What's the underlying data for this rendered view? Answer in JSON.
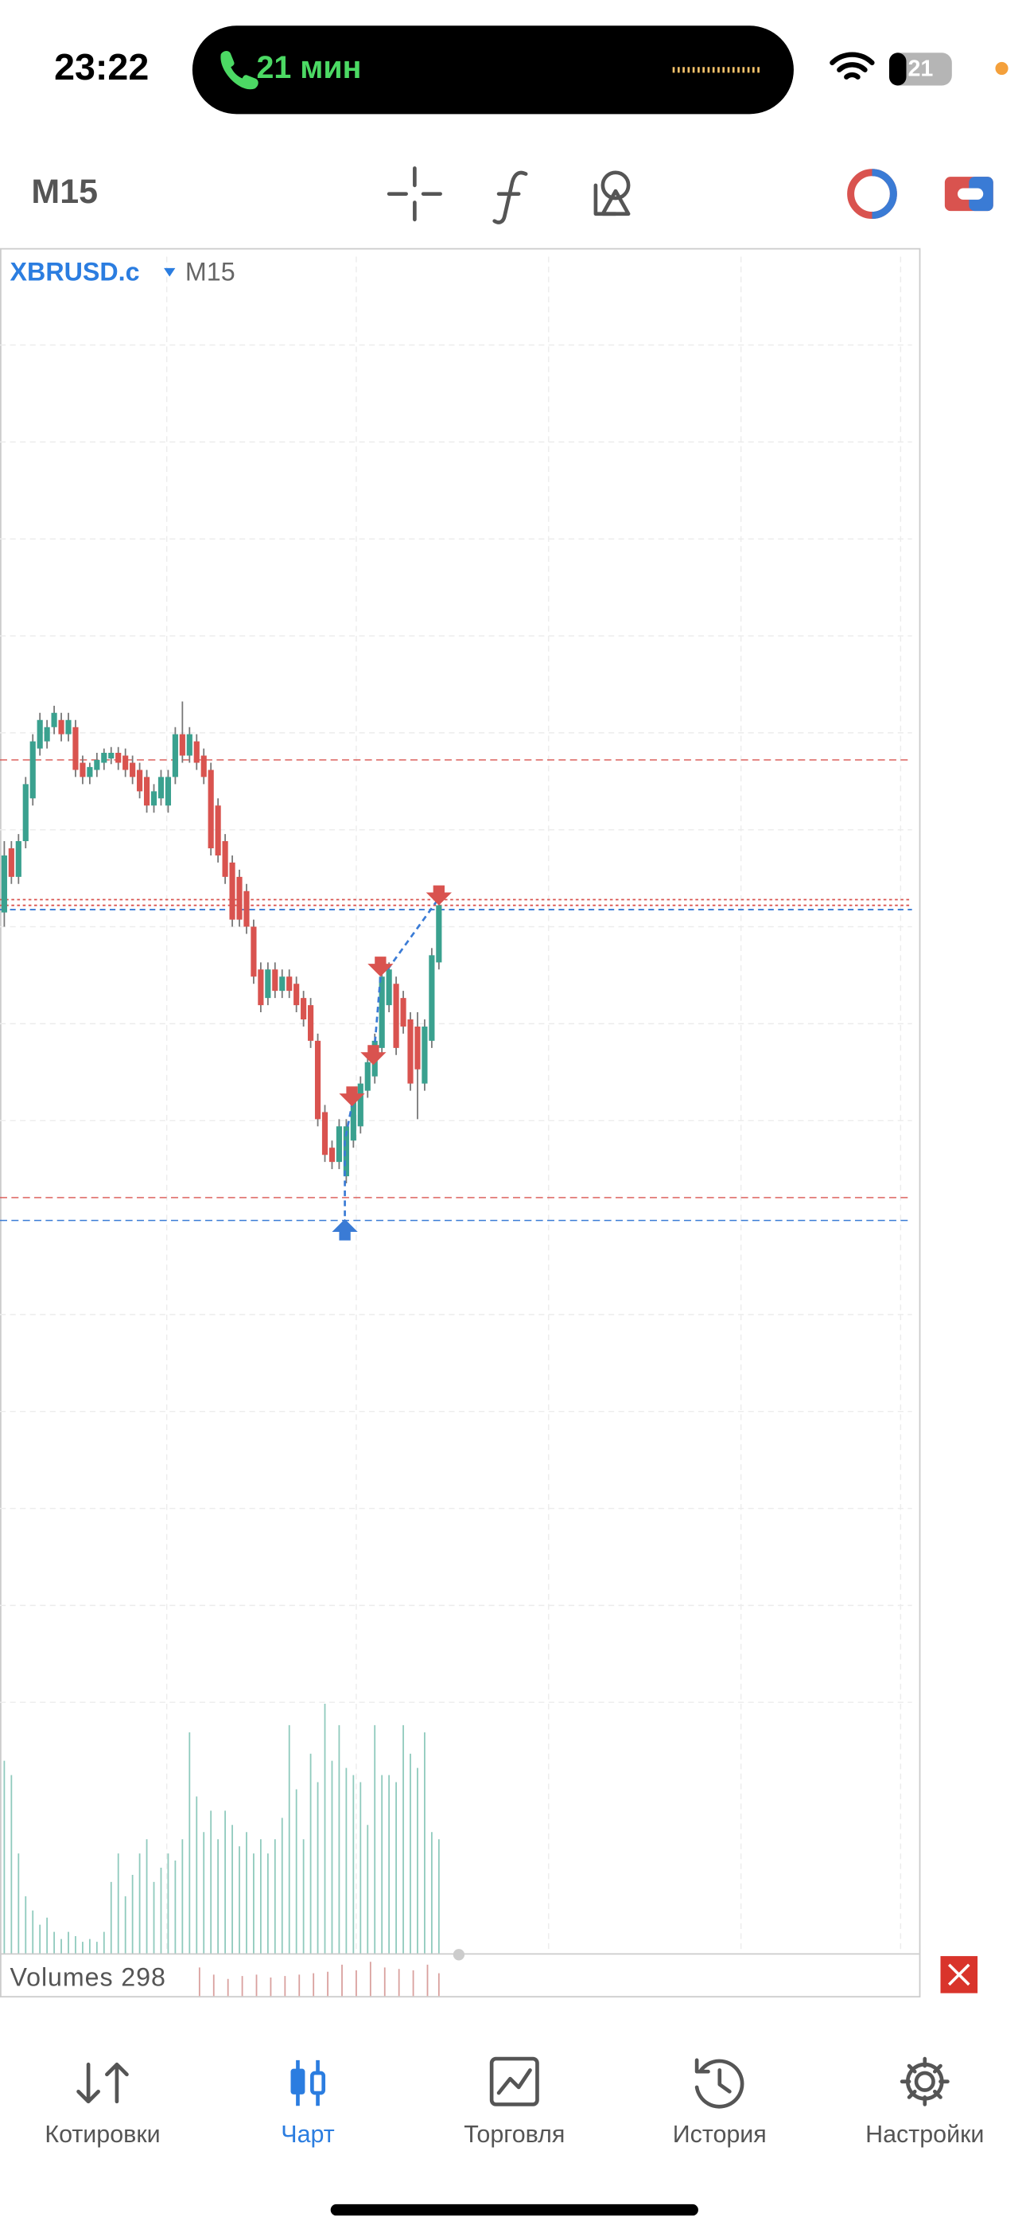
{
  "status_bar": {
    "time": "23:22",
    "call": "21 мин",
    "battery": "21"
  },
  "toolbar": {
    "timeframe": "M15"
  },
  "chart": {
    "symbol": "XBRUSD.c",
    "timeframe": "M15",
    "volumes_label": "Volumes 298"
  },
  "tabs": [
    {
      "label": "Котировки"
    },
    {
      "label": "Чарт"
    },
    {
      "label": "Торговля"
    },
    {
      "label": "История"
    },
    {
      "label": "Настройки"
    }
  ]
}
